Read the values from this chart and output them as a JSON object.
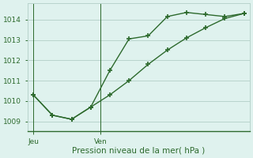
{
  "line1_x": [
    0,
    1,
    2,
    3,
    4,
    5,
    6,
    7,
    8,
    9,
    10,
    11
  ],
  "line1_y": [
    1010.3,
    1009.3,
    1009.1,
    1009.7,
    1011.5,
    1013.05,
    1013.2,
    1014.15,
    1014.35,
    1014.25,
    1014.15,
    1014.3
  ],
  "line2_x": [
    0,
    1,
    2,
    3,
    4,
    5,
    6,
    7,
    8,
    9,
    10,
    11
  ],
  "line2_y": [
    1010.3,
    1009.3,
    1009.1,
    1009.7,
    1010.3,
    1011.0,
    1011.8,
    1012.5,
    1013.1,
    1013.6,
    1014.05,
    1014.3
  ],
  "line_color": "#2d6a2d",
  "bg_color": "#dff2ee",
  "grid_color": "#b8d4cc",
  "ylim": [
    1008.5,
    1014.8
  ],
  "yticks": [
    1009,
    1010,
    1011,
    1012,
    1013,
    1014
  ],
  "xlim": [
    -0.3,
    11.3
  ],
  "jeu_x": 0,
  "ven_x": 3.5,
  "ven_line_x": 3.5,
  "xlabel": "Pression niveau de la mer( hPa )",
  "marker": "+",
  "marker_size": 4,
  "line_width": 1.0,
  "font_color": "#2d6a2d",
  "tick_font_size": 6.5,
  "label_font_size": 7.5,
  "figwidth": 3.2,
  "figheight": 2.0,
  "dpi": 100
}
